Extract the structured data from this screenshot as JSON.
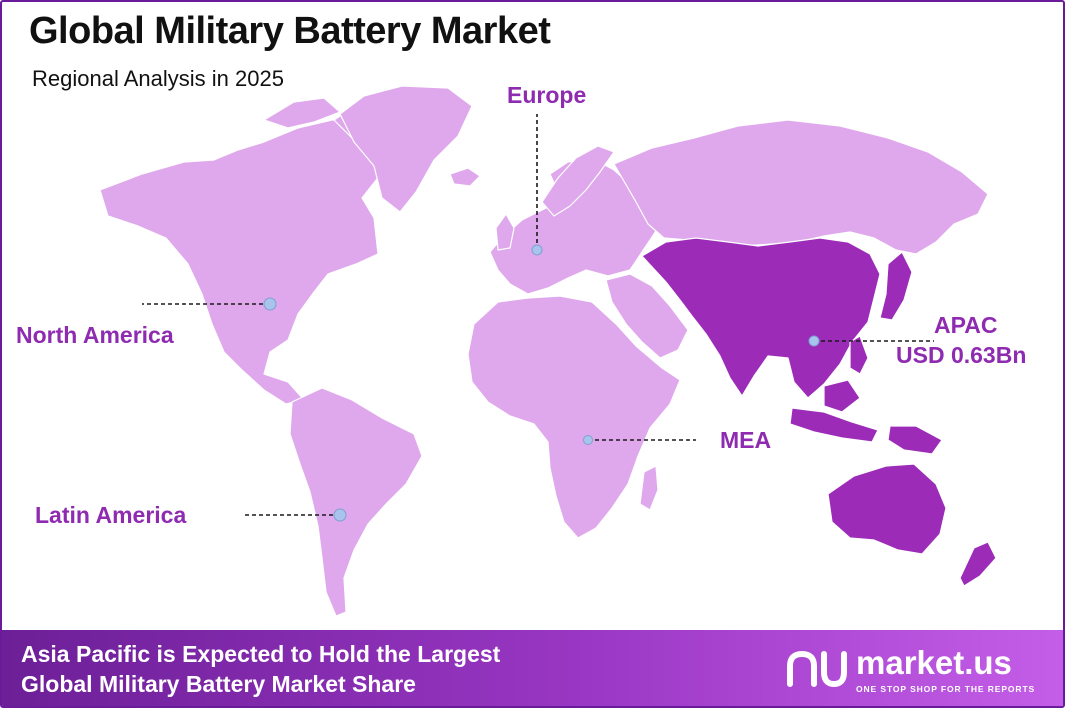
{
  "title": "Global Military Battery Market",
  "subtitle": "Regional Analysis in 2025",
  "colors": {
    "land": "#dfa8ec",
    "highlight": "#9c2bb8",
    "label": "#8e2bb0",
    "marker": "#a9c4ec",
    "border": "#6a1b9a"
  },
  "regions": {
    "europe": {
      "label": "Europe"
    },
    "north_america": {
      "label": "North America"
    },
    "latin_america": {
      "label": "Latin America"
    },
    "mea": {
      "label": "MEA"
    },
    "apac": {
      "label": "APAC",
      "value": "USD 0.63Bn",
      "highlighted": true
    }
  },
  "footer": {
    "line1": "Asia Pacific is Expected to Hold the Largest",
    "line2": "Global Military Battery Market Share"
  },
  "logo": {
    "name": "market.us",
    "tagline": "ONE STOP SHOP FOR THE REPORTS"
  }
}
